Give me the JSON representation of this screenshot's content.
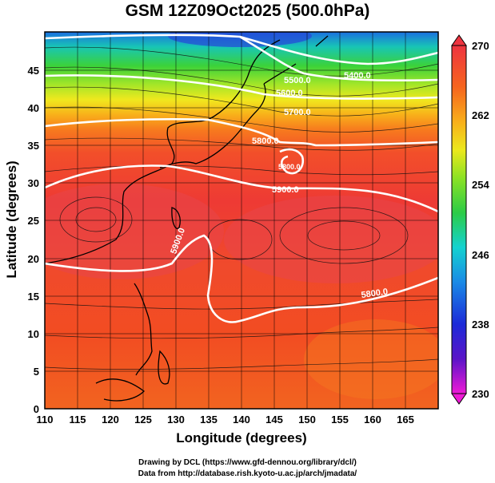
{
  "title": "GSM 12Z09Oct2025 (500.0hPa)",
  "map": {
    "xlabel": "Longitude (degrees)",
    "ylabel": "Latitude  (degrees)",
    "x_ticks": [
      110,
      115,
      120,
      125,
      130,
      135,
      140,
      145,
      150,
      155,
      160,
      165
    ],
    "y_ticks": [
      0,
      5,
      10,
      15,
      20,
      25,
      30,
      35,
      40,
      45
    ],
    "xlim": [
      110,
      170
    ],
    "ylim": [
      0,
      50
    ],
    "contour_labels": [
      "5500.0",
      "5400.0",
      "5600.0",
      "5700.0",
      "5800.0",
      "5900.0",
      "5900.0",
      "5800.0",
      "5800.0"
    ],
    "colorbar": {
      "ticks": [
        230,
        238,
        246,
        254,
        262,
        270
      ],
      "range": [
        230,
        270
      ]
    }
  },
  "credits": {
    "line1": "Drawing by DCL (https://www.gfd-dennou.org/library/dcl/)",
    "line2": "Data from http://database.rish.kyoto-u.ac.jp/arch/jmadata/"
  }
}
